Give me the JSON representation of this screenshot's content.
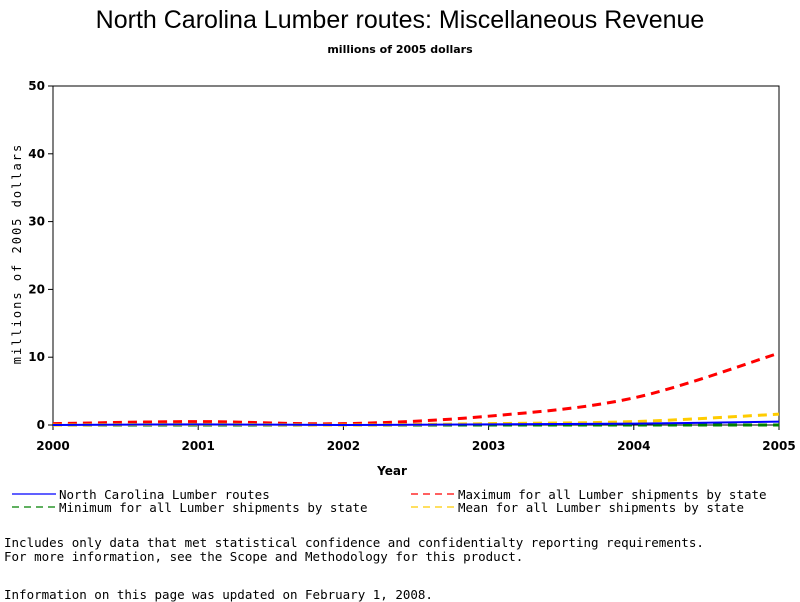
{
  "chart_data": {
    "type": "line",
    "title": "North Carolina Lumber routes: Miscellaneous Revenue",
    "subtitle": "millions of 2005 dollars",
    "xlabel": "Year",
    "ylabel": "millions of 2005 dollars",
    "xlim": [
      2000,
      2005
    ],
    "ylim": [
      0,
      50
    ],
    "x_ticks": [
      2000,
      2001,
      2002,
      2003,
      2004,
      2005
    ],
    "y_ticks": [
      0,
      10,
      20,
      30,
      40,
      50
    ],
    "grid": false,
    "legend_position": "bottom",
    "x": [
      2000,
      2001,
      2002,
      2003,
      2004,
      2005
    ],
    "series": [
      {
        "name": "North Carolina Lumber routes",
        "color": "#0000ff",
        "style": "solid",
        "values": [
          0.0,
          0.1,
          0.0,
          0.1,
          0.2,
          0.5
        ]
      },
      {
        "name": "Maximum for all Lumber shipments by state",
        "color": "#ff0000",
        "style": "dashed",
        "values": [
          0.2,
          0.5,
          0.2,
          1.3,
          4.0,
          10.6
        ]
      },
      {
        "name": "Minimum for all Lumber shipments by state",
        "color": "#008000",
        "style": "dashed",
        "values": [
          0.0,
          0.0,
          0.0,
          0.0,
          0.0,
          0.0
        ]
      },
      {
        "name": "Mean for all Lumber shipments by state",
        "color": "#ffcc00",
        "style": "dashed",
        "values": [
          0.0,
          0.1,
          0.0,
          0.2,
          0.5,
          1.6
        ]
      }
    ]
  },
  "notes": {
    "line1": "Includes only data that met statistical confidence and confidentialty reporting requirements.",
    "line2": "For more information, see the Scope and Methodology for this product.",
    "updated": "Information on this page was updated on February 1, 2008."
  }
}
